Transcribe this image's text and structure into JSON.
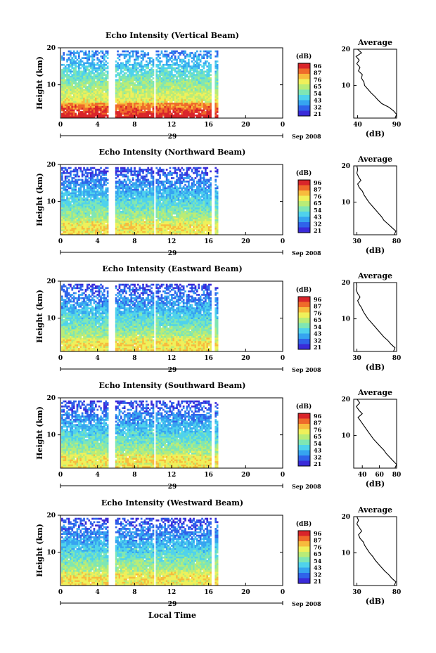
{
  "colors": {
    "scale": [
      "#3a2bd9",
      "#2f63ea",
      "#36a4f0",
      "#4fd2ec",
      "#7fe6b4",
      "#b9ec77",
      "#eff05a",
      "#f7bb3d",
      "#ef6a2a",
      "#d9252a"
    ]
  },
  "chart_data": [
    {
      "type": "heatmap",
      "beam": "vertical",
      "title": "Echo Intensity (Vertical Beam)",
      "ylabel": "Height (km)",
      "ylim": [
        1,
        20
      ],
      "yticks": [
        "20",
        "10"
      ],
      "xlim": [
        0,
        24
      ],
      "xticks": [
        "0",
        "4",
        "8",
        "12",
        "16",
        "20",
        "0"
      ],
      "date_day": "29",
      "date_month_year": "Sep 2008",
      "data_xrange": [
        0,
        17
      ],
      "gaps_hours": [
        5.2,
        5.65,
        10.1,
        16.35
      ],
      "colorbar": {
        "unit": "(dB)",
        "labels": [
          "96",
          "87",
          "76",
          "65",
          "54",
          "43",
          "32",
          "21"
        ]
      },
      "average_profile": {
        "title": "Average",
        "xlabel": "(dB)",
        "xticks": [
          "40",
          "90"
        ],
        "xlim": [
          35,
          90
        ],
        "yticks": [
          "20",
          "10"
        ],
        "heights": [
          20,
          19,
          18,
          17,
          16,
          15,
          14,
          13,
          12,
          11,
          10,
          9,
          8,
          7,
          6,
          5,
          4,
          3,
          2,
          1
        ],
        "values": [
          40,
          45,
          38,
          42,
          39,
          43,
          41,
          46,
          45,
          48,
          49,
          53,
          57,
          62,
          66,
          71,
          80,
          86,
          90,
          88
        ]
      }
    },
    {
      "type": "heatmap",
      "beam": "northward",
      "title": "Echo Intensity (Northward Beam)",
      "ylabel": "Height (km)",
      "ylim": [
        1,
        20
      ],
      "yticks": [
        "20",
        "10"
      ],
      "xlim": [
        0,
        24
      ],
      "xticks": [
        "0",
        "4",
        "8",
        "12",
        "16",
        "20",
        "0"
      ],
      "date_day": "29",
      "date_month_year": "Sep 2008",
      "data_xrange": [
        0,
        17
      ],
      "gaps_hours": [
        5.2,
        5.65,
        10.1,
        16.35
      ],
      "colorbar": {
        "unit": "(dB)",
        "labels": [
          "96",
          "87",
          "76",
          "65",
          "54",
          "43",
          "32",
          "21"
        ]
      },
      "average_profile": {
        "title": "Average",
        "xlabel": "(dB)",
        "xticks": [
          "30",
          "80"
        ],
        "xlim": [
          26,
          80
        ],
        "yticks": [
          "20",
          "10"
        ],
        "heights": [
          20,
          19,
          18,
          17,
          16,
          15,
          14,
          13,
          12,
          11,
          10,
          9,
          8,
          7,
          6,
          5,
          4,
          3,
          2,
          1
        ],
        "values": [
          30,
          31,
          30,
          32,
          35,
          31,
          33,
          37,
          39,
          42,
          45,
          49,
          53,
          57,
          61,
          64,
          69,
          74,
          79,
          77
        ]
      }
    },
    {
      "type": "heatmap",
      "beam": "eastward",
      "title": "Echo Intensity (Eastward Beam)",
      "ylabel": "Height (km)",
      "ylim": [
        1,
        20
      ],
      "yticks": [
        "20",
        "10"
      ],
      "xlim": [
        0,
        24
      ],
      "xticks": [
        "0",
        "4",
        "8",
        "12",
        "16",
        "20",
        "0"
      ],
      "date_day": "29",
      "date_month_year": "Sep 2008",
      "data_xrange": [
        0,
        17
      ],
      "gaps_hours": [
        5.2,
        5.65,
        10.1,
        16.35
      ],
      "colorbar": {
        "unit": "(dB)",
        "labels": [
          "96",
          "87",
          "76",
          "65",
          "54",
          "43",
          "32",
          "21"
        ]
      },
      "average_profile": {
        "title": "Average",
        "xlabel": "(dB)",
        "xticks": [
          "30",
          "80"
        ],
        "xlim": [
          26,
          80
        ],
        "yticks": [
          "20",
          "10"
        ],
        "heights": [
          20,
          19,
          18,
          17,
          16,
          15,
          14,
          13,
          12,
          11,
          10,
          9,
          8,
          7,
          6,
          5,
          4,
          3,
          2,
          1
        ],
        "values": [
          29,
          30,
          29,
          31,
          34,
          31,
          33,
          36,
          38,
          41,
          44,
          48,
          52,
          56,
          60,
          64,
          69,
          73,
          78,
          76
        ]
      }
    },
    {
      "type": "heatmap",
      "beam": "southward",
      "title": "Echo Intensity (Southward Beam)",
      "ylabel": "Height (km)",
      "ylim": [
        1,
        20
      ],
      "yticks": [
        "20",
        "10"
      ],
      "xlim": [
        0,
        24
      ],
      "xticks": [
        "0",
        "4",
        "8",
        "12",
        "16",
        "20",
        "0"
      ],
      "date_day": "29",
      "date_month_year": "Sep 2008",
      "data_xrange": [
        0,
        17
      ],
      "gaps_hours": [
        5.2,
        5.65,
        10.1,
        16.35
      ],
      "colorbar": {
        "unit": "(dB)",
        "labels": [
          "96",
          "87",
          "76",
          "65",
          "54",
          "43",
          "32",
          "21"
        ]
      },
      "average_profile": {
        "title": "Average",
        "xlabel": "(dB)",
        "xticks": [
          "40",
          "60",
          "80"
        ],
        "xlim": [
          30,
          80
        ],
        "yticks": [
          "20",
          "10"
        ],
        "heights": [
          20,
          19,
          18,
          17,
          16,
          15,
          14,
          13,
          12,
          11,
          10,
          9,
          8,
          7,
          6,
          5,
          4,
          3,
          2,
          1
        ],
        "values": [
          34,
          37,
          33,
          36,
          40,
          35,
          38,
          41,
          44,
          47,
          50,
          53,
          57,
          61,
          65,
          68,
          72,
          76,
          80,
          78
        ]
      }
    },
    {
      "type": "heatmap",
      "beam": "westward",
      "title": "Echo Intensity (Westward Beam)",
      "ylabel": "Height (km)",
      "ylim": [
        1,
        20
      ],
      "yticks": [
        "20",
        "10"
      ],
      "xlim": [
        0,
        24
      ],
      "xticks": [
        "0",
        "4",
        "8",
        "12",
        "16",
        "20",
        "0"
      ],
      "date_day": "29",
      "date_month_year": "Sep 2008",
      "data_xrange": [
        0,
        17
      ],
      "gaps_hours": [
        5.2,
        5.65,
        10.1,
        16.35
      ],
      "colorbar": {
        "unit": "(dB)",
        "labels": [
          "96",
          "87",
          "76",
          "65",
          "54",
          "43",
          "32",
          "21"
        ]
      },
      "average_profile": {
        "title": "Average",
        "xlabel": "(dB)",
        "xticks": [
          "30",
          "80"
        ],
        "xlim": [
          26,
          80
        ],
        "yticks": [
          "20",
          "10"
        ],
        "heights": [
          20,
          19,
          18,
          17,
          16,
          15,
          14,
          13,
          12,
          11,
          10,
          9,
          8,
          7,
          6,
          5,
          4,
          3,
          2,
          1
        ],
        "values": [
          30,
          32,
          30,
          33,
          36,
          32,
          34,
          38,
          40,
          43,
          46,
          50,
          53,
          57,
          61,
          65,
          70,
          74,
          79,
          77
        ]
      }
    }
  ],
  "xlabel": "Local Time"
}
